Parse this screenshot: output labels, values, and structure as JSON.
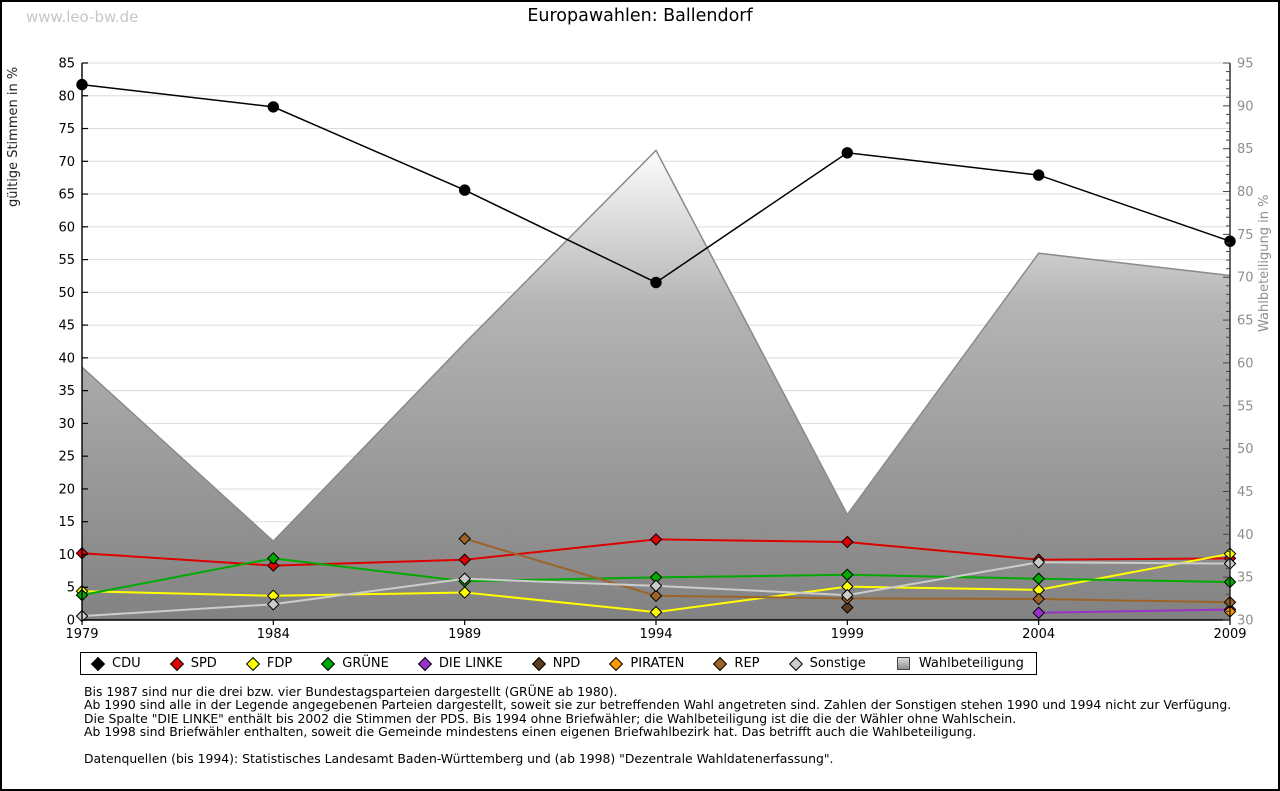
{
  "page": {
    "watermark": "www.leo-bw.de"
  },
  "chart_data": {
    "type": "line",
    "title": "Europawahlen: Ballendorf",
    "x": [
      1979,
      1984,
      1989,
      1994,
      1999,
      2004,
      2009
    ],
    "left_axis": {
      "label": "gültige Stimmen in %",
      "min": 0,
      "max": 85,
      "tick_step": 5
    },
    "right_axis": {
      "label": "Wahlbeteiligung in %",
      "min": 30,
      "max": 95,
      "tick_step": 5
    },
    "grid": true,
    "legend_position": "bottom",
    "series": [
      {
        "name": "CDU",
        "color": "#000000",
        "marker": "circle",
        "values": [
          81.7,
          78.3,
          65.6,
          51.5,
          71.3,
          67.9,
          57.8
        ]
      },
      {
        "name": "SPD",
        "color": "#dd0000",
        "marker": "diamond",
        "values": [
          10.2,
          8.3,
          9.2,
          12.3,
          11.9,
          9.2,
          9.4
        ]
      },
      {
        "name": "FDP",
        "color": "#ffff00",
        "marker": "diamond",
        "values": [
          4.4,
          3.7,
          4.2,
          1.2,
          5.1,
          4.6,
          10.1
        ]
      },
      {
        "name": "GRÜNE",
        "color": "#00aa00",
        "marker": "diamond",
        "values": [
          3.8,
          9.4,
          5.9,
          6.5,
          6.9,
          6.3,
          5.8
        ]
      },
      {
        "name": "DIE LINKE",
        "color": "#9933cc",
        "marker": "diamond",
        "values": [
          null,
          null,
          null,
          null,
          null,
          1.1,
          1.6
        ]
      },
      {
        "name": "NPD",
        "color": "#5c3a1e",
        "marker": "diamond",
        "values": [
          null,
          null,
          null,
          null,
          1.9,
          null,
          null
        ]
      },
      {
        "name": "PIRATEN",
        "color": "#ff9900",
        "marker": "diamond",
        "values": [
          null,
          null,
          null,
          null,
          null,
          null,
          1.3
        ]
      },
      {
        "name": "REP",
        "color": "#9c6428",
        "marker": "diamond",
        "values": [
          null,
          null,
          12.4,
          3.7,
          3.3,
          3.2,
          2.7
        ]
      },
      {
        "name": "Sonstige",
        "color": "#cccccc",
        "marker": "diamond",
        "values": [
          0.6,
          2.4,
          6.3,
          5.2,
          3.8,
          8.8,
          8.6
        ]
      }
    ],
    "area_series": {
      "name": "Wahlbeteiligung",
      "axis": "right",
      "values": [
        59.5,
        39.2,
        62.3,
        84.8,
        42.3,
        72.8,
        70.2
      ],
      "fill_top": "#fcfcfc",
      "fill_mid": "#b4b4b4",
      "fill_bottom": "#828282",
      "edge_color": "#8a8a8a"
    }
  },
  "footer": {
    "notes": [
      "Bis 1987 sind nur die drei bzw. vier Bundestagsparteien dargestellt (GRÜNE ab 1980).",
      "Ab 1990 sind alle in der Legende angegebenen Parteien dargestellt, soweit sie zur betreffenden Wahl angetreten sind. Zahlen der Sonstigen stehen 1990 und 1994 nicht zur Verfügung.",
      "Die Spalte \"DIE LINKE\" enthält bis 2002 die Stimmen der PDS. Bis 1994 ohne Briefwähler; die Wahlbeteiligung ist die die der Wähler ohne Wahlschein.",
      "Ab 1998 sind Briefwähler enthalten, soweit die Gemeinde mindestens einen eigenen Briefwahlbezirk hat. Das betrifft auch die Wahlbeteiligung."
    ],
    "source": "Datenquellen (bis 1994): Statistisches Landesamt Baden-Württemberg und (ab 1998) \"Dezentrale Wahldatenerfassung\"."
  }
}
